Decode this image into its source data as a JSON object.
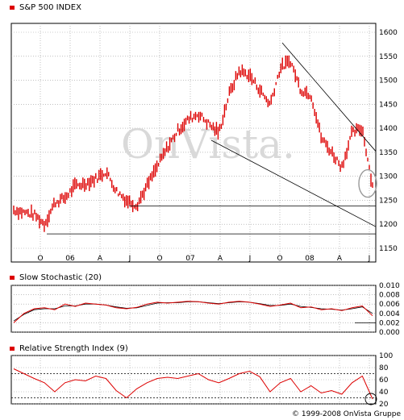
{
  "colors": {
    "price": "#dd0000",
    "signal": "#000000",
    "accent": "#cc0000",
    "grid": "#999999"
  },
  "watermark": "OnVista.",
  "footer": "© 1999-2008 OnVista Gruppe",
  "chart_data": [
    {
      "type": "bar",
      "subtype": "ohlc-price",
      "title": "S&P 500 INDEX",
      "x_ticks": [
        "O",
        "06",
        "A",
        "J",
        "O",
        "07",
        "A",
        "J",
        "O",
        "08",
        "A",
        "J"
      ],
      "y_ticks": [
        1150,
        1200,
        1250,
        1300,
        1350,
        1400,
        1450,
        1500,
        1550,
        1600
      ],
      "ylim": [
        1150,
        1600
      ],
      "grid": true,
      "x": [
        "2005-07",
        "2005-08",
        "2005-09",
        "2005-10",
        "2005-11",
        "2005-12",
        "2006-01",
        "2006-02",
        "2006-03",
        "2006-04",
        "2006-05",
        "2006-06",
        "2006-07",
        "2006-08",
        "2006-09",
        "2006-10",
        "2006-11",
        "2006-12",
        "2007-01",
        "2007-02",
        "2007-03",
        "2007-04",
        "2007-05",
        "2007-06",
        "2007-07",
        "2007-08",
        "2007-09",
        "2007-10",
        "2007-11",
        "2007-12",
        "2008-01",
        "2008-02",
        "2008-03",
        "2008-04",
        "2008-05",
        "2008-06"
      ],
      "values": [
        1230,
        1225,
        1220,
        1200,
        1245,
        1255,
        1280,
        1285,
        1295,
        1310,
        1270,
        1250,
        1240,
        1280,
        1320,
        1360,
        1395,
        1418,
        1430,
        1410,
        1390,
        1470,
        1520,
        1510,
        1480,
        1450,
        1525,
        1540,
        1480,
        1470,
        1380,
        1350,
        1320,
        1390,
        1400,
        1280
      ],
      "annotations": [
        "trendline",
        "support lines at 1180 and 1240",
        "circle at latest price"
      ]
    },
    {
      "type": "line",
      "title": "Slow Stochastic (20)",
      "y_ticks": [
        "0.000",
        "0.002",
        "0.004",
        "0.006",
        "0.008",
        "0.010"
      ],
      "ylim": [
        0,
        0.01
      ],
      "grid": true,
      "series": [
        {
          "values": [
            0.002,
            0.004,
            0.005,
            0.0052,
            0.0048,
            0.006,
            0.0055,
            0.0062,
            0.006,
            0.0058,
            0.0052,
            0.005,
            0.0053,
            0.006,
            0.0064,
            0.0062,
            0.0064,
            0.0066,
            0.0065,
            0.0062,
            0.006,
            0.0064,
            0.0066,
            0.0064,
            0.006,
            0.0055,
            0.0058,
            0.0062,
            0.0052,
            0.0054,
            0.0048,
            0.005,
            0.0046,
            0.0052,
            0.0056,
            0.0035
          ]
        },
        {
          "values": [
            0.0024,
            0.0038,
            0.0048,
            0.005,
            0.005,
            0.0056,
            0.0056,
            0.006,
            0.006,
            0.0058,
            0.0054,
            0.0051,
            0.0052,
            0.0057,
            0.0062,
            0.0063,
            0.0063,
            0.0065,
            0.0065,
            0.0063,
            0.0061,
            0.0063,
            0.0065,
            0.0064,
            0.0061,
            0.0057,
            0.0057,
            0.006,
            0.0055,
            0.0053,
            0.005,
            0.0049,
            0.0047,
            0.005,
            0.0054,
            0.004
          ]
        }
      ]
    },
    {
      "type": "line",
      "title": "Relative Strength Index (9)",
      "y_ticks": [
        20,
        40,
        60,
        80,
        100
      ],
      "ylim": [
        20,
        100
      ],
      "reference_lines": [
        30,
        70
      ],
      "grid": true,
      "series": [
        {
          "values": [
            78,
            70,
            62,
            55,
            40,
            55,
            60,
            58,
            66,
            62,
            42,
            30,
            45,
            55,
            62,
            64,
            62,
            66,
            70,
            60,
            55,
            62,
            70,
            74,
            65,
            40,
            55,
            62,
            40,
            50,
            38,
            42,
            36,
            55,
            66,
            28
          ]
        }
      ]
    }
  ]
}
